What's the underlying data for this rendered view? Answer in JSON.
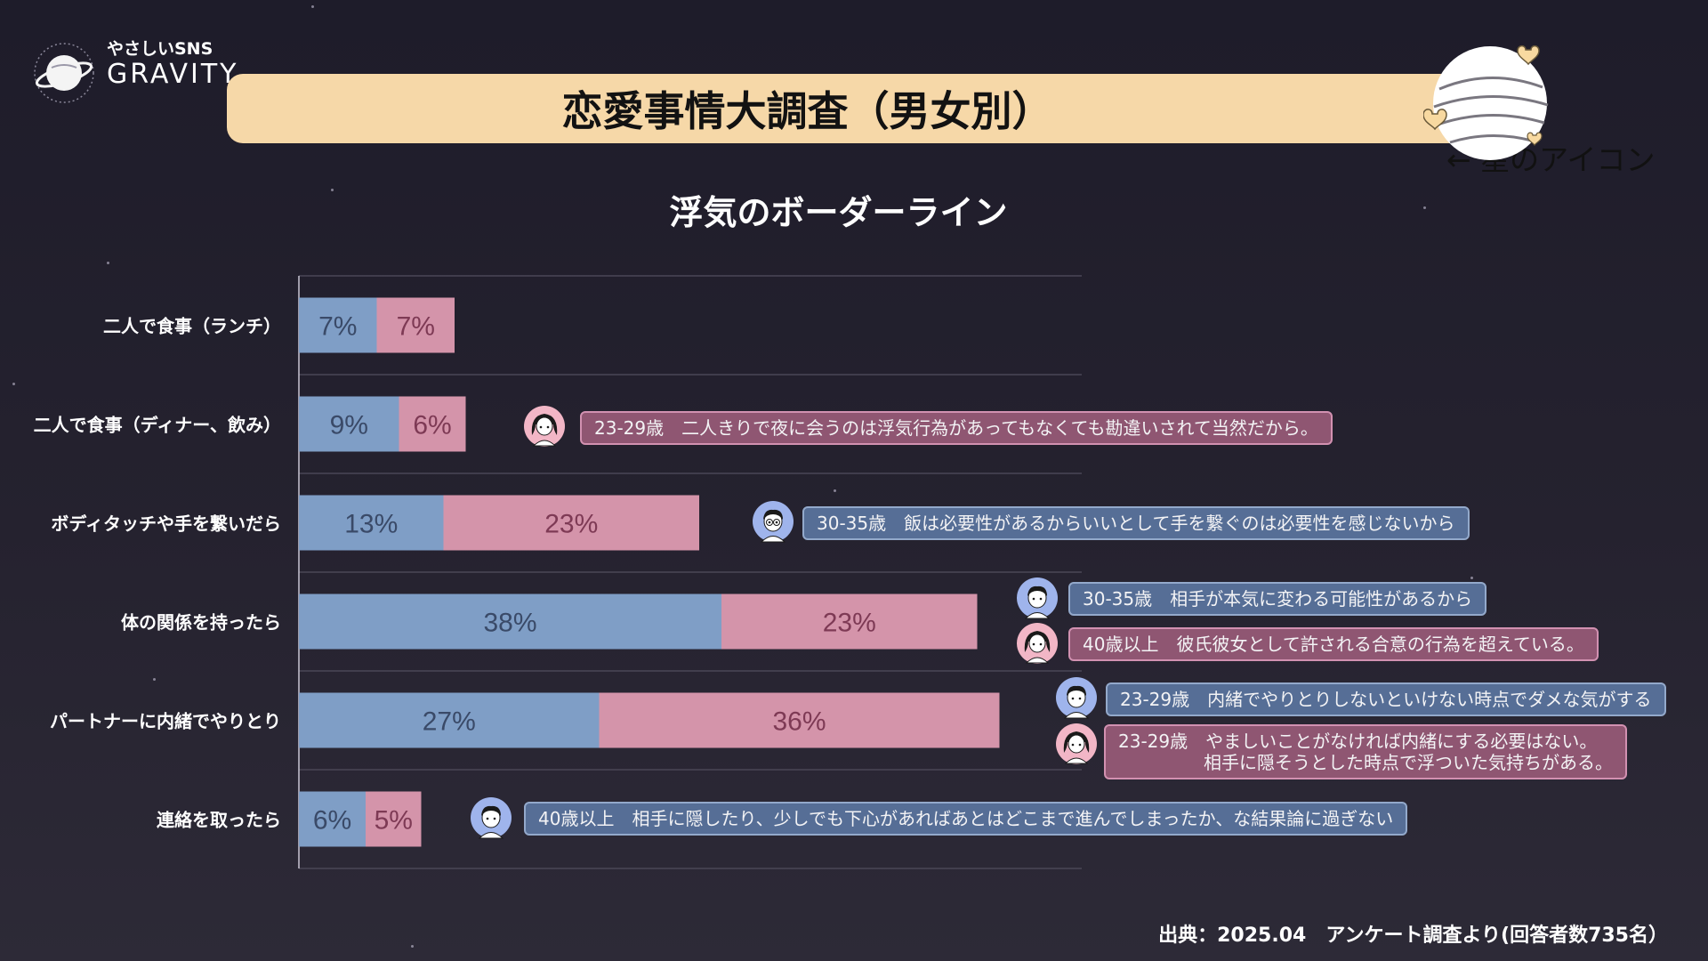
{
  "brand": {
    "tagline": "やさしいSNS",
    "name": "GRAVITY"
  },
  "header": {
    "title": "恋愛事情大調査（男女別）",
    "planet_note": "← 星のアイコン"
  },
  "chart_data": {
    "type": "bar",
    "stacked": true,
    "orientation": "horizontal",
    "title": "浮気のボーダーライン",
    "categories": [
      "二人で食事（ランチ）",
      "二人で食事（ディナー、飲み）",
      "ボディタッチや手を繋いだら",
      "体の関係を持ったら",
      "パートナーに内緒でやりとり",
      "連絡を取ったら"
    ],
    "series": [
      {
        "values": [
          7,
          9,
          13,
          38,
          27,
          6
        ],
        "labels": [
          "7%",
          "9%",
          "13%",
          "38%",
          "27%",
          "6%"
        ],
        "color": "#7f9ec6",
        "label_color": "#3a4a68"
      },
      {
        "values": [
          7,
          6,
          23,
          23,
          36,
          5
        ],
        "labels": [
          "7%",
          "6%",
          "23%",
          "23%",
          "36%",
          "5%"
        ],
        "color": "#d494aa",
        "label_color": "#7e3a55"
      }
    ],
    "xlim": [
      0,
      70
    ],
    "grid": "horizontal"
  },
  "comments": [
    {
      "row": 1,
      "gender": "female",
      "icon": "woman-avatar-icon",
      "text": "23-29歳　二人きりで夜に会うのは浮気行為があってもなくても勘違いされて当然だから。"
    },
    {
      "row": 2,
      "gender": "male",
      "icon": "man-glasses-avatar-icon",
      "text": "30-35歳　飯は必要性があるからいいとして手を繋ぐのは必要性を感じないから"
    },
    {
      "row": 3,
      "gender": "male",
      "icon": "man-avatar-icon",
      "text": "30-35歳　相手が本気に変わる可能性があるから"
    },
    {
      "row": 3,
      "gender": "female",
      "icon": "woman-avatar-icon",
      "text": "40歳以上　彼氏彼女として許される合意の行為を超えている。"
    },
    {
      "row": 4,
      "gender": "male",
      "icon": "man-avatar-icon",
      "text": "23-29歳　内緒でやりとりしないといけない時点でダメな気がする"
    },
    {
      "row": 4,
      "gender": "female",
      "icon": "woman-avatar-icon",
      "text": "23-29歳　やましいことがなければ内緒にする必要はない。",
      "text2": "相手に隠そうとした時点で浮ついた気持ちがある。"
    },
    {
      "row": 5,
      "gender": "male",
      "icon": "man-avatar-icon",
      "text": "40歳以上　相手に隠したり、少しでも下心があればあとはどこまで進んでしまったか、な結果論に過ぎない"
    }
  ],
  "footer": {
    "source": "出典：2025.04　アンケート調査より(回答者数735名）"
  }
}
